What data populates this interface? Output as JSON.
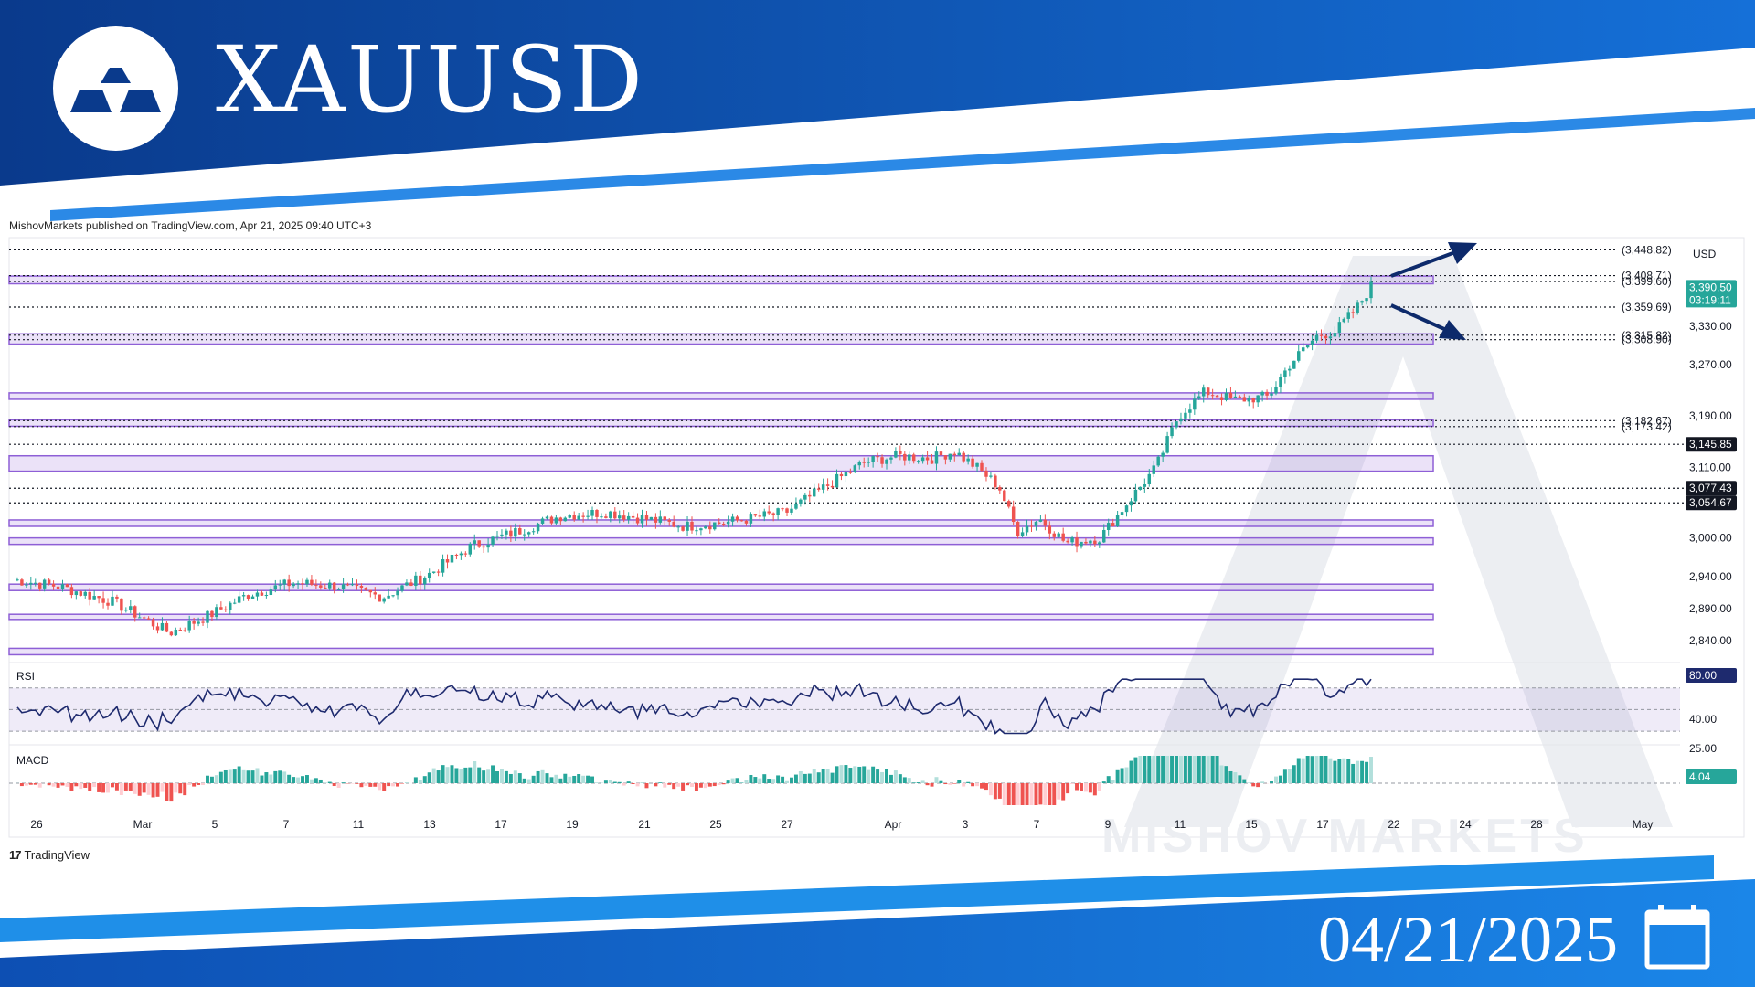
{
  "header": {
    "title": "XAUUSD",
    "date": "04/21/2025"
  },
  "publisher": "MishovMarkets published on TradingView.com, Apr 21, 2025 09:40 UTC+3",
  "branding": {
    "tradingview": "TradingView",
    "tradingview_logo": "17",
    "watermark": "MISHOV MARKETS"
  },
  "colors": {
    "brand_dark": "#0a3a8c",
    "brand_light": "#1b86e8",
    "bull": "#26a69a",
    "bear": "#ef5350",
    "zone": "#8e5fd6",
    "arrow": "#0d2a6b"
  },
  "icons": {
    "logo": "gold-bars-logo-icon",
    "calendar": "calendar-icon",
    "arrows": [
      "arrow-up-icon",
      "arrow-down-icon"
    ]
  },
  "chart_data": {
    "type": "candlestick",
    "title": "XAUUSD",
    "currency": "USD",
    "y_ticks": [
      3330,
      3270,
      3190,
      3110,
      3000,
      2940,
      2890,
      2840
    ],
    "y_tick_labels": [
      "3,330.00",
      "3,270.00",
      "3,190.00",
      "3,110.00",
      "3,000.00",
      "2,940.00",
      "2,890.00",
      "2,840.00"
    ],
    "x_ticks": [
      "26",
      "Mar",
      "5",
      "7",
      "11",
      "13",
      "17",
      "19",
      "21",
      "25",
      "27",
      "Apr",
      "3",
      "7",
      "9",
      "11",
      "15",
      "17",
      "22",
      "24",
      "28",
      "May"
    ],
    "levels": [
      {
        "label": "(3,448.82)",
        "value": 3448.82
      },
      {
        "label": "(3,408.71)",
        "value": 3408.71
      },
      {
        "label": "(3,399.60)",
        "value": 3399.6
      },
      {
        "label": "(3,359.69)",
        "value": 3359.69
      },
      {
        "label": "(3,315.82)",
        "value": 3315.82
      },
      {
        "label": "(3,308.90)",
        "value": 3308.9
      },
      {
        "label": "(3,182.67)",
        "value": 3182.67
      },
      {
        "label": "(3,173.42)",
        "value": 3173.42
      }
    ],
    "axis_badges": [
      {
        "label": "3,390.50",
        "sub": "03:19:11",
        "value": 3390.5,
        "kind": "last"
      },
      {
        "label": "3,145.85",
        "value": 3145.85,
        "kind": "level"
      },
      {
        "label": "3,077.43",
        "value": 3077.43,
        "kind": "level"
      },
      {
        "label": "3,054.67",
        "value": 3054.67,
        "kind": "level"
      }
    ],
    "zones": [
      [
        3396,
        3408
      ],
      [
        3302,
        3318
      ],
      [
        3216,
        3226
      ],
      [
        3174,
        3184
      ],
      [
        3104,
        3128
      ],
      [
        3018,
        3028
      ],
      [
        2990,
        3000
      ],
      [
        2918,
        2928
      ],
      [
        2873,
        2881
      ],
      [
        2818,
        2828
      ]
    ],
    "rsi": {
      "label": "RSI",
      "badge": "80.00",
      "right_labels": [
        "40.00",
        "25.00"
      ],
      "upper": 70,
      "lower": 30
    },
    "macd": {
      "label": "MACD",
      "badge": "4.04"
    }
  }
}
